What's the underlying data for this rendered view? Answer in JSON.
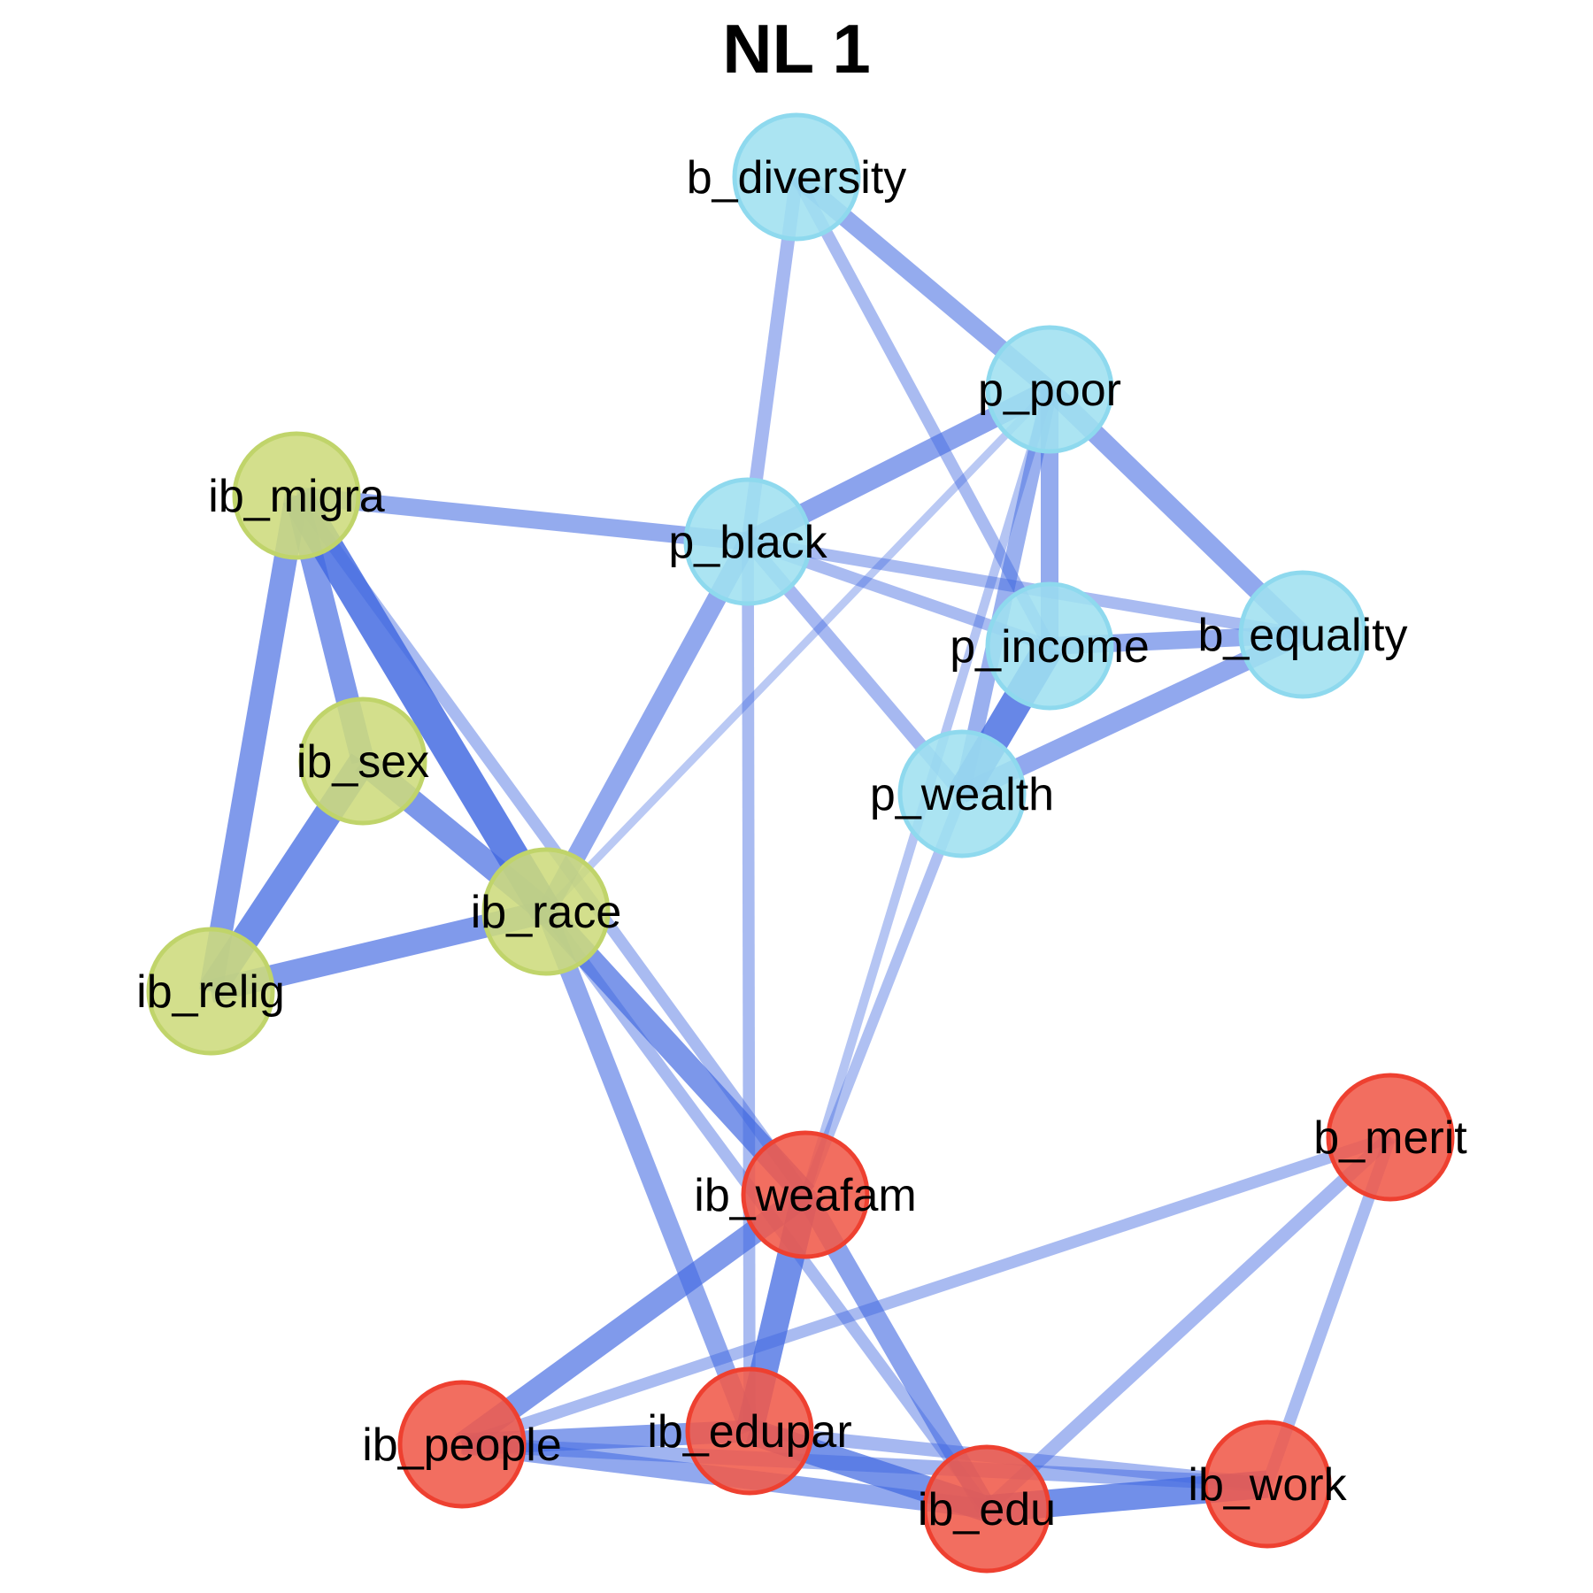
{
  "title": "NL 1",
  "colors": {
    "edge": "#4169e1",
    "green_fill": "#cddb7c",
    "green_stroke": "#c0d46a",
    "blue_fill": "#9fe0f0",
    "blue_stroke": "#8ed9ee",
    "red_fill": "#f05a4a",
    "red_stroke": "#ee4030"
  },
  "nodes": [
    {
      "id": "b_diversity",
      "label": "b_diversity",
      "group": "blue"
    },
    {
      "id": "p_poor",
      "label": "p_poor",
      "group": "blue"
    },
    {
      "id": "p_black",
      "label": "p_black",
      "group": "blue"
    },
    {
      "id": "p_income",
      "label": "p_income",
      "group": "blue"
    },
    {
      "id": "b_equality",
      "label": "b_equality",
      "group": "blue"
    },
    {
      "id": "p_wealth",
      "label": "p_wealth",
      "group": "blue"
    },
    {
      "id": "ib_migra",
      "label": "ib_migra",
      "group": "green"
    },
    {
      "id": "ib_sex",
      "label": "ib_sex",
      "group": "green"
    },
    {
      "id": "ib_race",
      "label": "ib_race",
      "group": "green"
    },
    {
      "id": "ib_relig",
      "label": "ib_relig",
      "group": "green"
    },
    {
      "id": "b_merit",
      "label": "b_merit",
      "group": "red"
    },
    {
      "id": "ib_weafam",
      "label": "ib_weafam",
      "group": "red"
    },
    {
      "id": "ib_people",
      "label": "ib_people",
      "group": "red"
    },
    {
      "id": "ib_edupar",
      "label": "ib_edupar",
      "group": "red"
    },
    {
      "id": "ib_edu",
      "label": "ib_edu",
      "group": "red"
    },
    {
      "id": "ib_work",
      "label": "ib_work",
      "group": "red"
    }
  ],
  "edges": [
    {
      "from": "ib_migra",
      "to": "ib_race",
      "weight": 1.0
    },
    {
      "from": "ib_migra",
      "to": "ib_sex",
      "weight": 0.7
    },
    {
      "from": "ib_migra",
      "to": "ib_relig",
      "weight": 0.7
    },
    {
      "from": "ib_sex",
      "to": "ib_relig",
      "weight": 0.85
    },
    {
      "from": "ib_sex",
      "to": "ib_race",
      "weight": 0.75
    },
    {
      "from": "ib_relig",
      "to": "ib_race",
      "weight": 0.7
    },
    {
      "from": "ib_migra",
      "to": "p_black",
      "weight": 0.5
    },
    {
      "from": "ib_migra",
      "to": "ib_weafam",
      "weight": 0.3
    },
    {
      "from": "ib_race",
      "to": "p_black",
      "weight": 0.55
    },
    {
      "from": "ib_race",
      "to": "p_poor",
      "weight": 0.15
    },
    {
      "from": "ib_race",
      "to": "ib_weafam",
      "weight": 0.75
    },
    {
      "from": "ib_race",
      "to": "ib_edupar",
      "weight": 0.55
    },
    {
      "from": "ib_race",
      "to": "ib_edu",
      "weight": 0.3
    },
    {
      "from": "b_diversity",
      "to": "p_poor",
      "weight": 0.5
    },
    {
      "from": "b_diversity",
      "to": "p_black",
      "weight": 0.35
    },
    {
      "from": "b_diversity",
      "to": "p_income",
      "weight": 0.3
    },
    {
      "from": "p_poor",
      "to": "p_black",
      "weight": 0.6
    },
    {
      "from": "p_poor",
      "to": "p_income",
      "weight": 0.5
    },
    {
      "from": "p_poor",
      "to": "b_equality",
      "weight": 0.55
    },
    {
      "from": "p_poor",
      "to": "p_wealth",
      "weight": 0.45
    },
    {
      "from": "p_poor",
      "to": "ib_weafam",
      "weight": 0.2
    },
    {
      "from": "p_black",
      "to": "p_income",
      "weight": 0.3
    },
    {
      "from": "p_black",
      "to": "b_equality",
      "weight": 0.3
    },
    {
      "from": "p_black",
      "to": "p_wealth",
      "weight": 0.35
    },
    {
      "from": "p_black",
      "to": "ib_edupar",
      "weight": 0.3
    },
    {
      "from": "p_income",
      "to": "b_equality",
      "weight": 0.5
    },
    {
      "from": "p_income",
      "to": "p_wealth",
      "weight": 0.95
    },
    {
      "from": "b_equality",
      "to": "p_wealth",
      "weight": 0.55
    },
    {
      "from": "p_wealth",
      "to": "ib_weafam",
      "weight": 0.25
    },
    {
      "from": "ib_weafam",
      "to": "ib_edupar",
      "weight": 0.85
    },
    {
      "from": "ib_weafam",
      "to": "ib_people",
      "weight": 0.7
    },
    {
      "from": "ib_weafam",
      "to": "ib_edu",
      "weight": 0.6
    },
    {
      "from": "b_merit",
      "to": "ib_people",
      "weight": 0.3
    },
    {
      "from": "b_merit",
      "to": "ib_edu",
      "weight": 0.35
    },
    {
      "from": "b_merit",
      "to": "ib_work",
      "weight": 0.3
    },
    {
      "from": "ib_people",
      "to": "ib_edupar",
      "weight": 0.65
    },
    {
      "from": "ib_people",
      "to": "ib_edu",
      "weight": 0.55
    },
    {
      "from": "ib_people",
      "to": "ib_work",
      "weight": 0.4
    },
    {
      "from": "ib_edupar",
      "to": "ib_edu",
      "weight": 0.8
    },
    {
      "from": "ib_edupar",
      "to": "ib_work",
      "weight": 0.35
    },
    {
      "from": "ib_edu",
      "to": "ib_work",
      "weight": 0.85
    }
  ]
}
